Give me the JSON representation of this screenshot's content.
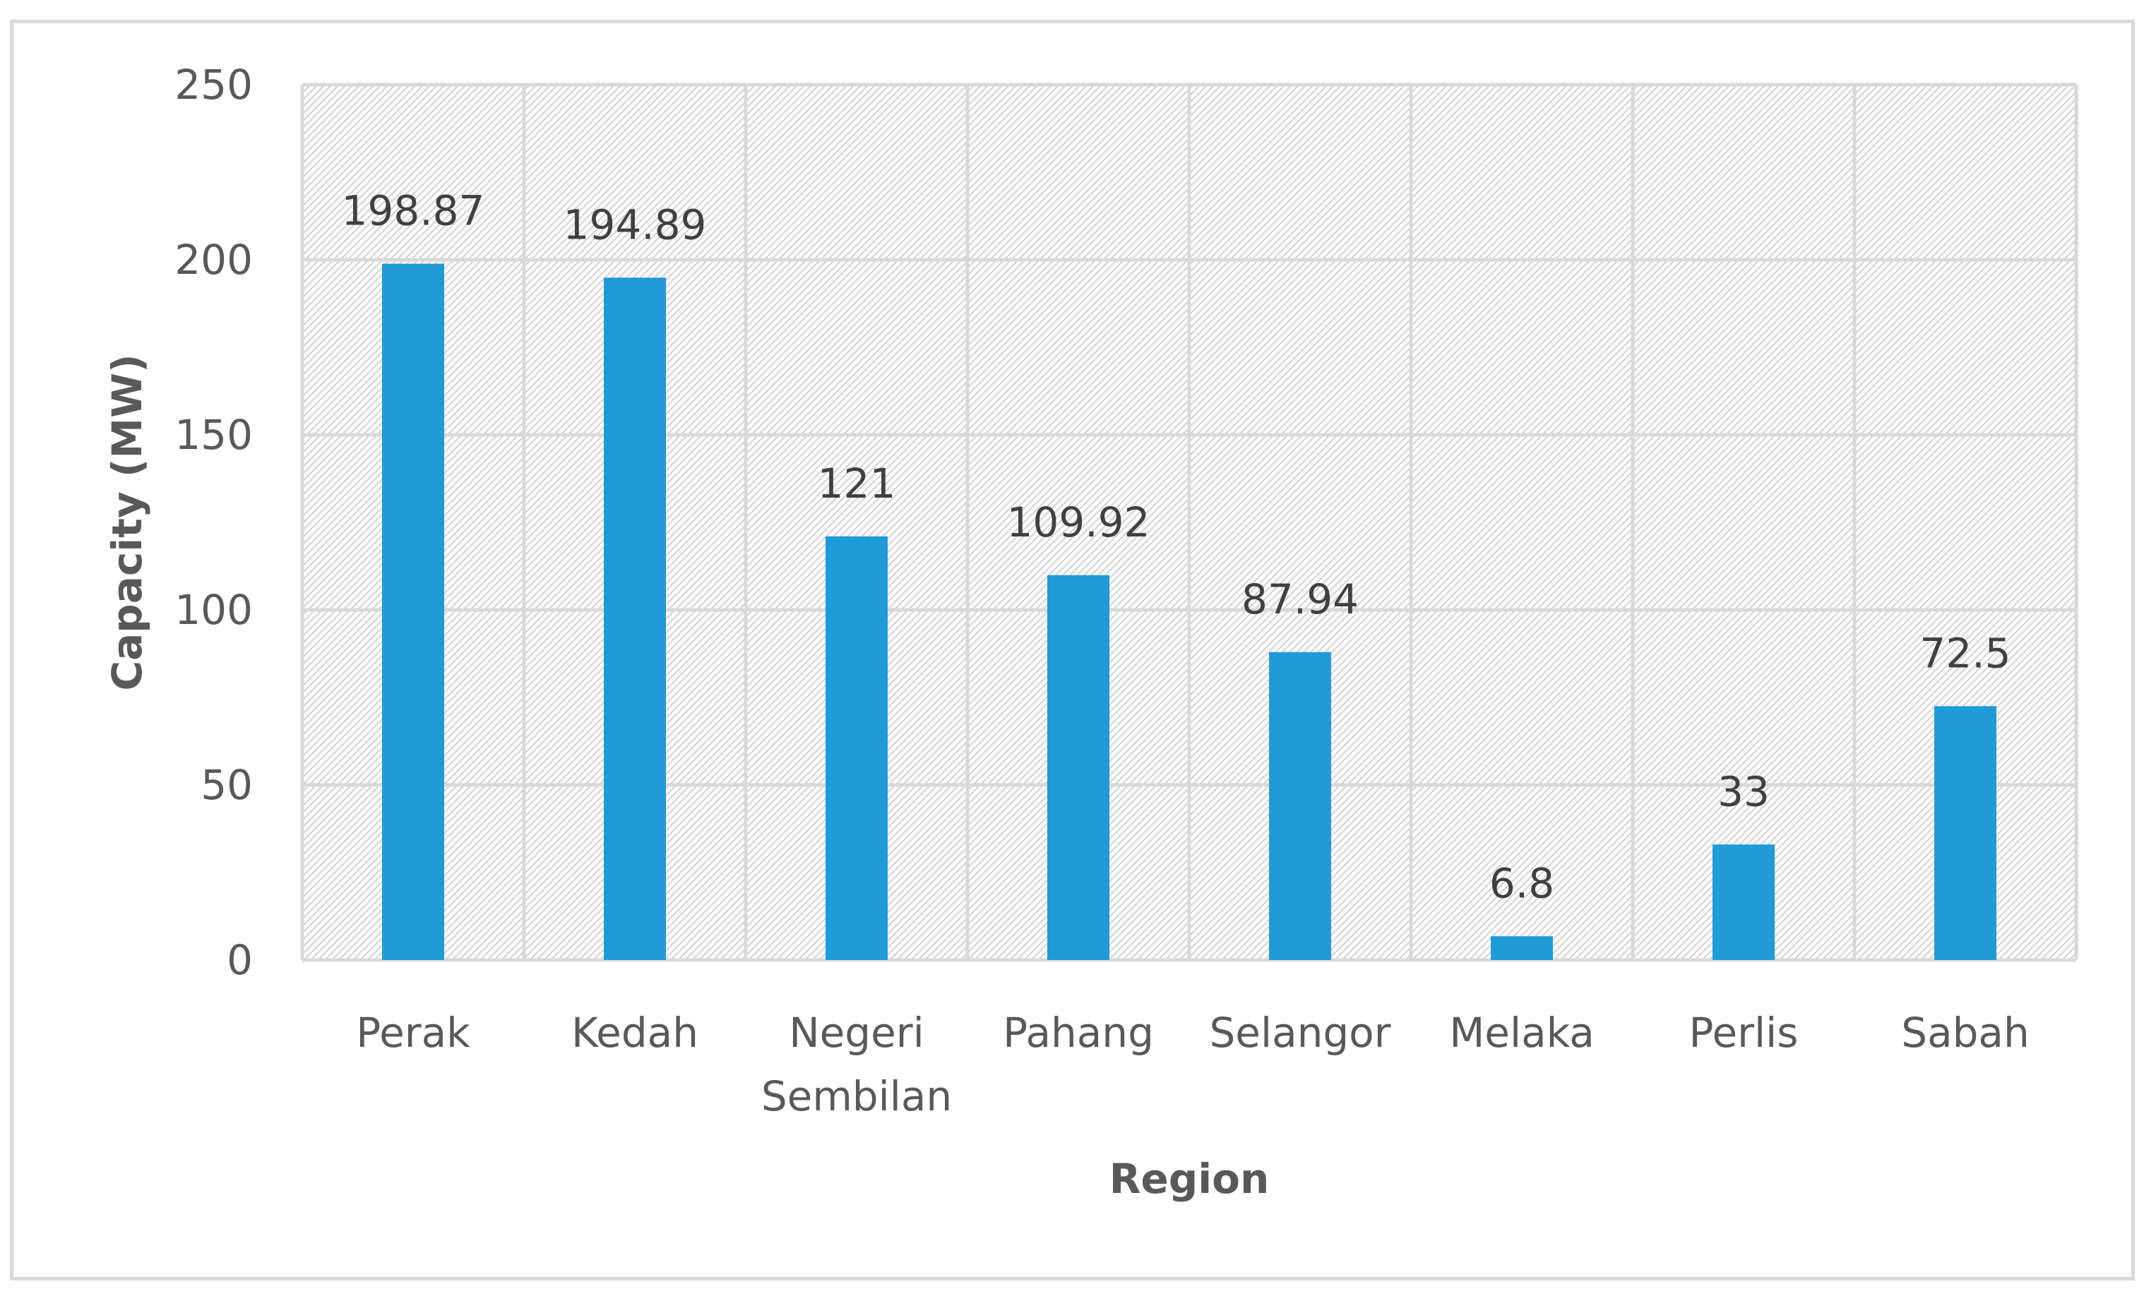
{
  "chart_data": {
    "type": "bar",
    "title": "",
    "xlabel": "Region",
    "ylabel": "Capacity (MW)",
    "categories": [
      "Perak",
      "Kedah",
      "Negeri Sembilan",
      "Pahang",
      "Selangor",
      "Melaka",
      "Perlis",
      "Sabah"
    ],
    "category_lines": [
      [
        "Perak"
      ],
      [
        "Kedah"
      ],
      [
        "Negeri",
        "Sembilan"
      ],
      [
        "Pahang"
      ],
      [
        "Selangor"
      ],
      [
        "Melaka"
      ],
      [
        "Perlis"
      ],
      [
        "Sabah"
      ]
    ],
    "values": [
      198.87,
      194.89,
      121,
      109.92,
      87.94,
      6.8,
      33,
      72.5
    ],
    "value_labels": [
      "198.87",
      "194.89",
      "121",
      "109.92",
      "87.94",
      "6.8",
      "33",
      "72.5"
    ],
    "ylim": [
      0,
      250
    ],
    "yticks": [
      0,
      50,
      100,
      150,
      200,
      250
    ],
    "grid": true,
    "legend": "none",
    "colors": {
      "bar": "#1f9bd7",
      "grid": "#d9d9d9",
      "hatch": "#d4d4d4",
      "text": "#595959"
    }
  }
}
